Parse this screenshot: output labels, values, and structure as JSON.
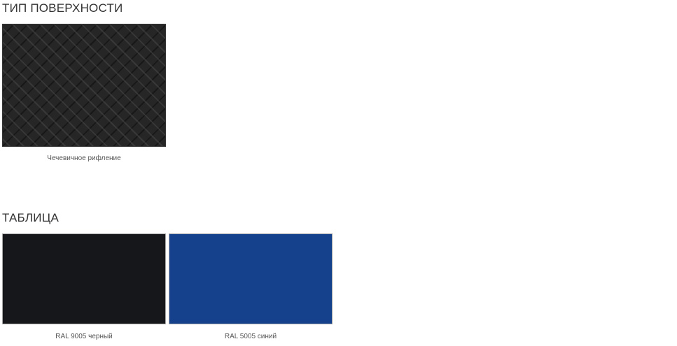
{
  "surface": {
    "title": "ТИП ПОВЕРХНОСТИ",
    "items": [
      {
        "label": "Чечевичное рифление",
        "color": "#262626"
      }
    ]
  },
  "table": {
    "title": "ТАБЛИЦА",
    "items": [
      {
        "label": "RAL 9005 черный",
        "color": "#15171b"
      },
      {
        "label": "RAL 5005 синий",
        "color": "#15408b"
      }
    ]
  }
}
